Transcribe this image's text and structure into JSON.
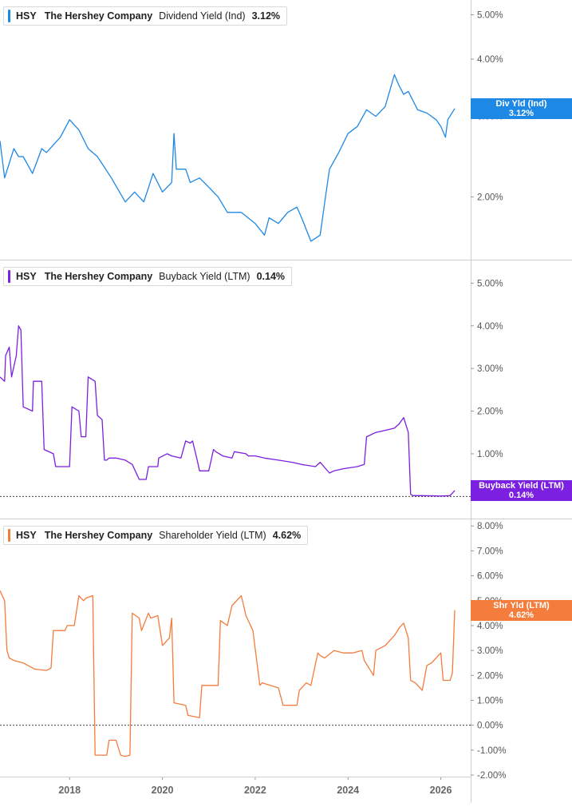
{
  "ticker": "HSY",
  "company": "The Hershey Company",
  "colors": {
    "dividend": "#1e88e5",
    "buyback": "#7b1fe0",
    "shareholder": "#f47c3c"
  },
  "chart_data": [
    {
      "type": "line",
      "legend": {
        "metric": "Dividend Yield (Ind)",
        "value": "3.12%"
      },
      "tag": {
        "label": "Div Yld (Ind)",
        "value": "3.12%"
      },
      "y_scale": "log",
      "ylim": [
        1.5,
        5.3
      ],
      "yticks": [
        2.0,
        3.0,
        4.0,
        5.0
      ],
      "ytick_labels": [
        "2.00%",
        "3.00%",
        "4.00%",
        "5.00%"
      ],
      "zero_line": false,
      "series": [
        {
          "x": [
            2016.5,
            2016.6,
            2016.8,
            2016.9,
            2017.0,
            2017.2,
            2017.4,
            2017.5,
            2017.8,
            2018.0,
            2018.2,
            2018.4,
            2018.6,
            2018.9,
            2019.2,
            2019.4,
            2019.6,
            2019.8,
            2020.0,
            2020.2,
            2020.25,
            2020.3,
            2020.5,
            2020.6,
            2020.8,
            2021.0,
            2021.2,
            2021.4,
            2021.7,
            2022.0,
            2022.2,
            2022.3,
            2022.5,
            2022.7,
            2022.9,
            2023.0,
            2023.2,
            2023.4,
            2023.5,
            2023.6,
            2023.8,
            2024.0,
            2024.2,
            2024.4,
            2024.6,
            2024.8,
            2025.0,
            2025.1,
            2025.2,
            2025.3,
            2025.5,
            2025.7,
            2025.9,
            2026.0,
            2026.1,
            2026.15,
            2026.3
          ],
          "y": [
            2.65,
            2.2,
            2.55,
            2.45,
            2.45,
            2.25,
            2.55,
            2.5,
            2.7,
            2.95,
            2.8,
            2.55,
            2.45,
            2.2,
            1.95,
            2.05,
            1.95,
            2.25,
            2.05,
            2.15,
            2.75,
            2.3,
            2.3,
            2.15,
            2.2,
            2.1,
            2.0,
            1.85,
            1.85,
            1.75,
            1.65,
            1.8,
            1.75,
            1.85,
            1.9,
            1.8,
            1.6,
            1.65,
            1.95,
            2.3,
            2.5,
            2.75,
            2.85,
            3.1,
            3.0,
            3.15,
            3.7,
            3.5,
            3.35,
            3.4,
            3.1,
            3.05,
            2.95,
            2.85,
            2.7,
            2.95,
            3.12
          ]
        }
      ]
    },
    {
      "type": "line",
      "legend": {
        "metric": "Buyback Yield (LTM)",
        "value": "0.14%"
      },
      "tag": {
        "label": "Buyback Yield (LTM)",
        "value": "0.14%"
      },
      "y_scale": "linear",
      "ylim": [
        -0.05,
        5.4
      ],
      "yticks": [
        0,
        1,
        2,
        3,
        4,
        5
      ],
      "ytick_labels": [
        "0.00%",
        "1.00%",
        "2.00%",
        "3.00%",
        "4.00%",
        "5.00%"
      ],
      "zero_line": true,
      "series": [
        {
          "x": [
            2016.5,
            2016.6,
            2016.62,
            2016.7,
            2016.75,
            2016.85,
            2016.9,
            2016.95,
            2017.0,
            2017.2,
            2017.22,
            2017.4,
            2017.45,
            2017.65,
            2017.7,
            2017.75,
            2017.8,
            2018.0,
            2018.05,
            2018.2,
            2018.25,
            2018.35,
            2018.4,
            2018.55,
            2018.6,
            2018.7,
            2018.75,
            2018.8,
            2018.85,
            2019.0,
            2019.2,
            2019.35,
            2019.5,
            2019.65,
            2019.7,
            2019.9,
            2019.92,
            2020.1,
            2020.2,
            2020.4,
            2020.5,
            2020.6,
            2020.65,
            2020.75,
            2020.8,
            2021.0,
            2021.1,
            2021.15,
            2021.3,
            2021.5,
            2021.55,
            2021.8,
            2021.85,
            2022.0,
            2022.2,
            2022.5,
            2022.8,
            2023.0,
            2023.3,
            2023.4,
            2023.6,
            2023.7,
            2023.9,
            2024.2,
            2024.35,
            2024.4,
            2024.6,
            2024.8,
            2025.0,
            2025.1,
            2025.2,
            2025.3,
            2025.35,
            2025.4,
            2025.6,
            2026.0,
            2026.2,
            2026.3
          ],
          "y": [
            2.8,
            2.7,
            3.3,
            3.5,
            2.8,
            3.3,
            4.0,
            3.9,
            2.1,
            2.0,
            2.7,
            2.7,
            1.1,
            1.0,
            0.7,
            0.7,
            0.7,
            0.7,
            2.1,
            2.0,
            1.4,
            1.4,
            2.8,
            2.7,
            1.9,
            1.8,
            0.85,
            0.85,
            0.9,
            0.9,
            0.85,
            0.75,
            0.4,
            0.4,
            0.7,
            0.7,
            0.9,
            1.0,
            0.95,
            0.9,
            1.3,
            1.25,
            1.3,
            0.85,
            0.6,
            0.6,
            1.1,
            1.05,
            0.95,
            0.9,
            1.05,
            1.0,
            0.95,
            0.95,
            0.9,
            0.85,
            0.8,
            0.75,
            0.7,
            0.8,
            0.55,
            0.6,
            0.65,
            0.7,
            0.75,
            1.4,
            1.5,
            1.55,
            1.6,
            1.7,
            1.85,
            1.5,
            0.05,
            0.02,
            0.02,
            0.01,
            0.02,
            0.14
          ]
        }
      ]
    },
    {
      "type": "line",
      "legend": {
        "metric": "Shareholder Yield (LTM)",
        "value": "4.62%"
      },
      "tag": {
        "label": "Shr Yld (LTM)",
        "value": "4.62%"
      },
      "y_scale": "linear",
      "ylim": [
        -2.0,
        8.2
      ],
      "yticks": [
        -2,
        -1,
        0,
        1,
        2,
        3,
        4,
        5,
        6,
        7,
        8
      ],
      "ytick_labels": [
        "-2.00%",
        "-1.00%",
        "0.00%",
        "1.00%",
        "2.00%",
        "3.00%",
        "4.00%",
        "5.00%",
        "6.00%",
        "7.00%",
        "8.00%"
      ],
      "zero_line": true,
      "series": [
        {
          "x": [
            2016.5,
            2016.6,
            2016.65,
            2016.7,
            2016.8,
            2017.0,
            2017.2,
            2017.25,
            2017.5,
            2017.6,
            2017.65,
            2017.9,
            2017.95,
            2018.1,
            2018.2,
            2018.3,
            2018.35,
            2018.5,
            2018.55,
            2018.8,
            2018.85,
            2019.0,
            2019.1,
            2019.2,
            2019.3,
            2019.35,
            2019.5,
            2019.55,
            2019.7,
            2019.75,
            2019.9,
            2020.0,
            2020.15,
            2020.2,
            2020.25,
            2020.5,
            2020.55,
            2020.8,
            2020.85,
            2021.2,
            2021.25,
            2021.4,
            2021.5,
            2021.7,
            2021.75,
            2021.8,
            2021.95,
            2022.1,
            2022.15,
            2022.5,
            2022.6,
            2022.9,
            2022.95,
            2023.1,
            2023.2,
            2023.35,
            2023.4,
            2023.5,
            2023.7,
            2023.9,
            2024.1,
            2024.3,
            2024.35,
            2024.55,
            2024.6,
            2024.8,
            2025.0,
            2025.1,
            2025.2,
            2025.3,
            2025.35,
            2025.45,
            2025.6,
            2025.7,
            2025.8,
            2026.0,
            2026.05,
            2026.2,
            2026.25,
            2026.3
          ],
          "y": [
            5.4,
            5.0,
            3.0,
            2.7,
            2.6,
            2.5,
            2.3,
            2.25,
            2.2,
            2.3,
            3.8,
            3.8,
            4.0,
            4.0,
            5.2,
            5.0,
            5.1,
            5.2,
            -1.2,
            -1.2,
            -0.6,
            -0.6,
            -1.2,
            -1.25,
            -1.2,
            4.5,
            4.3,
            3.8,
            4.5,
            4.3,
            4.4,
            3.2,
            3.5,
            4.3,
            0.9,
            0.8,
            0.4,
            0.3,
            1.6,
            1.6,
            4.2,
            4.0,
            4.8,
            5.2,
            4.8,
            4.4,
            3.8,
            1.6,
            1.7,
            1.5,
            0.8,
            0.8,
            1.4,
            1.7,
            1.6,
            2.9,
            2.8,
            2.7,
            3.0,
            2.9,
            2.9,
            3.0,
            2.6,
            2.0,
            3.0,
            3.2,
            3.6,
            3.9,
            4.1,
            3.5,
            1.8,
            1.7,
            1.4,
            2.4,
            2.5,
            2.9,
            1.8,
            1.8,
            2.1,
            4.62
          ]
        }
      ]
    }
  ],
  "x_axis": {
    "range": [
      2016.5,
      2026.3
    ],
    "ticks": [
      2018,
      2020,
      2022,
      2024,
      2026
    ],
    "tick_labels": [
      "2018",
      "2020",
      "2022",
      "2024",
      "2026"
    ]
  }
}
